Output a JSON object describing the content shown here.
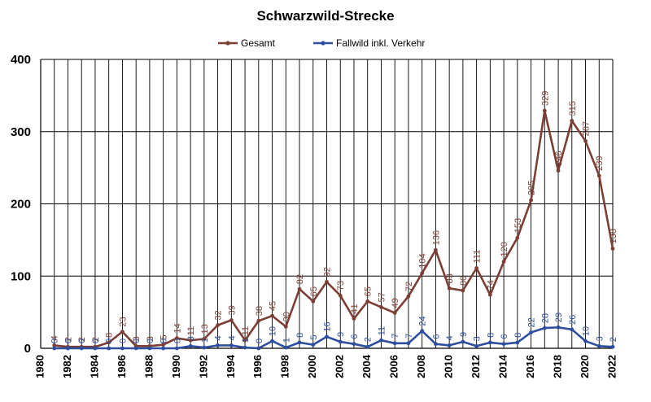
{
  "chart_data": {
    "type": "line",
    "title": "Schwarzwild-Strecke",
    "xlabel": "",
    "ylabel": "",
    "xlim": [
      1980,
      2022
    ],
    "ylim": [
      0,
      400
    ],
    "x_ticks": [
      1980,
      1982,
      1984,
      1986,
      1988,
      1990,
      1992,
      1994,
      1996,
      1998,
      2000,
      2002,
      2004,
      2006,
      2008,
      2010,
      2012,
      2014,
      2016,
      2018,
      2020,
      2022
    ],
    "y_ticks": [
      0,
      100,
      200,
      300,
      400
    ],
    "grid": "vertical lines at each year, horizontal lines at each 100",
    "legend_position": "top-center",
    "x": [
      1981,
      1982,
      1983,
      1984,
      1985,
      1986,
      1987,
      1988,
      1989,
      1990,
      1991,
      1992,
      1993,
      1994,
      1995,
      1996,
      1997,
      1998,
      1999,
      2000,
      2001,
      2002,
      2003,
      2004,
      2005,
      2006,
      2007,
      2008,
      2009,
      2010,
      2011,
      2012,
      2013,
      2014,
      2015,
      2016,
      2017,
      2018,
      2019,
      2020,
      2021,
      2022
    ],
    "series": [
      {
        "name": "Gesamt",
        "color": "#7b3f35",
        "values": [
          4,
          2,
          2,
          2,
          8,
          23,
          3,
          3,
          5,
          14,
          11,
          13,
          32,
          39,
          11,
          38,
          45,
          30,
          82,
          65,
          92,
          73,
          41,
          65,
          57,
          49,
          72,
          104,
          136,
          83,
          80,
          111,
          74,
          120,
          153,
          205,
          329,
          246,
          315,
          287,
          239,
          138
        ],
        "labels": [
          "4",
          "2",
          "2",
          "2",
          "8",
          "23",
          "3",
          "3",
          "5",
          "14",
          "11",
          "13",
          "32",
          "39",
          "11",
          "38",
          "45",
          "30",
          "82",
          "65",
          "92",
          "73",
          "41",
          "65",
          "57",
          "49",
          "72",
          "104",
          "136",
          "83",
          "80",
          "111",
          "74",
          "120",
          "153",
          "205",
          "329",
          "246",
          "315",
          "287",
          "239",
          "138"
        ]
      },
      {
        "name": "Fallwild inkl. Verkehr",
        "color": "#2e4f9e",
        "values": [
          0,
          0,
          0,
          0,
          0,
          0,
          0,
          0,
          0,
          0,
          3,
          1,
          4,
          4,
          1,
          0,
          10,
          1,
          8,
          5,
          16,
          9,
          6,
          2,
          11,
          7,
          7,
          24,
          6,
          4,
          9,
          3,
          8,
          6,
          8,
          22,
          28,
          29,
          26,
          10,
          3,
          2
        ],
        "labels": [
          "0",
          "0",
          "0",
          "0",
          "0",
          "0",
          "0",
          "0",
          "0",
          "0",
          "3",
          "1",
          "4",
          "4",
          "1",
          "0",
          "10",
          "1",
          "8",
          "5",
          "16",
          "9",
          "6",
          "2",
          "11",
          "7",
          "7",
          "24",
          "6",
          "4",
          "9",
          "3",
          "8",
          "6",
          "8",
          "22",
          "28",
          "29",
          "26",
          "10",
          "3",
          "2"
        ]
      }
    ]
  }
}
